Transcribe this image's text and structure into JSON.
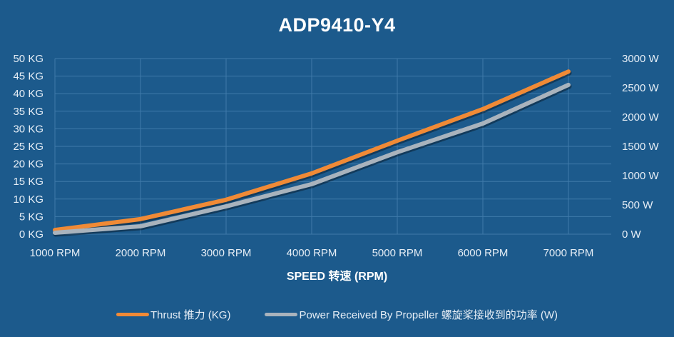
{
  "chart_data": {
    "type": "line",
    "title": "ADP9410-Y4",
    "xlabel": "SPEED 转速 (RPM)",
    "ylabel": "",
    "ylabel_right": "",
    "categories": [
      "1000 RPM",
      "2000 RPM",
      "3000 RPM",
      "4000 RPM",
      "5000 RPM",
      "6000 RPM",
      "7000 RPM"
    ],
    "x": [
      1000,
      2000,
      3000,
      4000,
      5000,
      6000,
      7000
    ],
    "series": [
      {
        "name": "Thrust 推力 (KG)",
        "axis": "left",
        "color": "#f08a36",
        "values": [
          1.2,
          4.3,
          9.8,
          17.3,
          26.6,
          35.6,
          46.3
        ]
      },
      {
        "name": "Power Received By Propeller 螺旋桨接收到的功率 (W)",
        "axis": "right",
        "color": "#a9b3bd",
        "values": [
          25,
          135,
          475,
          855,
          1400,
          1890,
          2550
        ]
      }
    ],
    "ylim": [
      0,
      50
    ],
    "ylim_right": [
      0,
      3000
    ],
    "yticks": [
      "0 KG",
      "5 KG",
      "10 KG",
      "15 KG",
      "20 KG",
      "25 KG",
      "30 KG",
      "35 KG",
      "40 KG",
      "45 KG",
      "50 KG"
    ],
    "yticks_right": [
      "0 W",
      "500 W",
      "1000 W",
      "1500 W",
      "2000 W",
      "2500 W",
      "3000 W"
    ],
    "grid": true,
    "legend_position": "bottom"
  },
  "colors": {
    "background": "#1c5a8c",
    "grid": "#3f7aaa",
    "thrust": "#f08a36",
    "power": "#a9b3bd"
  }
}
